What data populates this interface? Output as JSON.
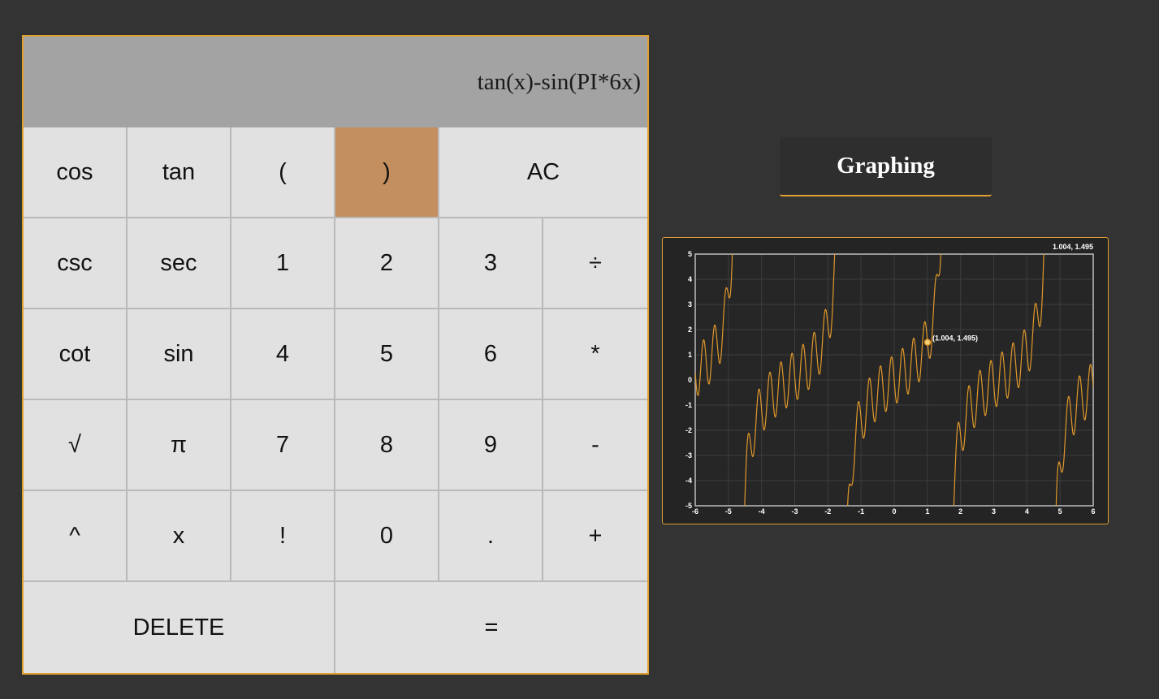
{
  "display": {
    "expression": "tan(x)-sin(PI*6x)"
  },
  "keypad": {
    "rows": [
      [
        "cos",
        "tan",
        "(",
        ")",
        "AC"
      ],
      [
        "csc",
        "sec",
        "1",
        "2",
        "3",
        "÷"
      ],
      [
        "cot",
        "sin",
        "4",
        "5",
        "6",
        "*"
      ],
      [
        "√",
        "π",
        "7",
        "8",
        "9",
        "-"
      ],
      [
        "^",
        "x",
        "!",
        "0",
        ".",
        "+"
      ],
      [
        "DELETE",
        "="
      ]
    ],
    "active_key": ")"
  },
  "graphing_button": {
    "label": "Graphing"
  },
  "graph": {
    "function": "tan(x)-sin(PI*6x)",
    "xlim": [
      -6,
      6
    ],
    "ylim": [
      -5,
      5
    ],
    "x_ticks": [
      "-6",
      "-5",
      "-4",
      "-3",
      "-2",
      "-1",
      "0",
      "1",
      "2",
      "3",
      "4",
      "5",
      "6"
    ],
    "y_ticks": [
      "5",
      "4",
      "3",
      "2",
      "1",
      "0",
      "-1",
      "-2",
      "-3",
      "-4",
      "-5"
    ],
    "grid": true,
    "line_color": "#e0982a",
    "hover_point": {
      "x": 1.004,
      "y": 1.495,
      "label": "(1.004, 1.495)"
    },
    "corner_readout": "1.004, 1.495"
  },
  "colors": {
    "background": "#333333",
    "accent": "#e0a030",
    "key_active": "#c48f5e",
    "key_bg": "#e1e1e1",
    "display_bg": "#a3a3a3"
  }
}
